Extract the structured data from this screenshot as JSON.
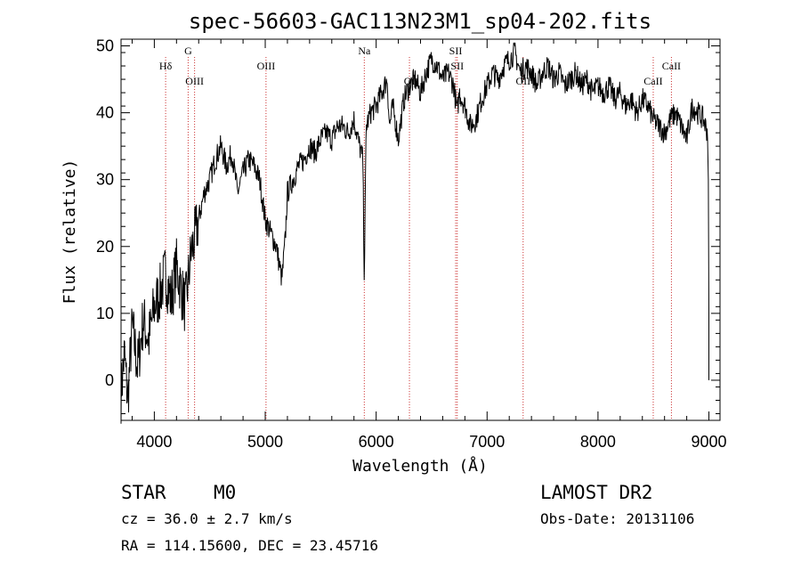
{
  "chart_data": {
    "type": "line",
    "title": "spec-56603-GAC113N23M1_sp04-202.fits",
    "xlabel": "Wavelength (Å)",
    "ylabel": "Flux (relative)",
    "xlim": [
      3700,
      9100
    ],
    "ylim": [
      -6,
      51
    ],
    "xticks": [
      4000,
      5000,
      6000,
      7000,
      8000,
      9000
    ],
    "yticks": [
      0,
      10,
      20,
      30,
      40,
      50
    ],
    "x": [
      3700,
      3730,
      3760,
      3800,
      3850,
      3900,
      3950,
      4000,
      4050,
      4100,
      4150,
      4200,
      4250,
      4280,
      4300,
      4330,
      4360,
      4400,
      4450,
      4500,
      4550,
      4600,
      4650,
      4700,
      4750,
      4800,
      4850,
      4900,
      4950,
      5000,
      5050,
      5100,
      5150,
      5180,
      5200,
      5250,
      5300,
      5350,
      5400,
      5450,
      5500,
      5550,
      5600,
      5650,
      5700,
      5750,
      5800,
      5850,
      5880,
      5893,
      5910,
      5950,
      6000,
      6050,
      6100,
      6120,
      6150,
      6200,
      6250,
      6300,
      6350,
      6400,
      6450,
      6500,
      6550,
      6600,
      6650,
      6700,
      6730,
      6750,
      6800,
      6850,
      6900,
      6950,
      7000,
      7050,
      7100,
      7150,
      7200,
      7250,
      7300,
      7350,
      7400,
      7450,
      7500,
      7550,
      7600,
      7650,
      7700,
      7750,
      7800,
      7850,
      7900,
      7950,
      8000,
      8050,
      8100,
      8150,
      8200,
      8250,
      8300,
      8350,
      8400,
      8450,
      8500,
      8550,
      8600,
      8650,
      8700,
      8750,
      8800,
      8850,
      8900,
      8950,
      8990,
      9000
    ],
    "y": [
      -2,
      4,
      -3,
      8,
      2,
      9,
      6,
      11,
      13,
      16,
      12,
      17,
      13,
      11,
      14,
      19,
      21,
      24,
      28,
      30,
      33,
      35,
      32,
      34,
      28,
      31,
      33,
      32,
      30,
      24,
      22,
      20,
      15,
      21,
      28,
      30,
      32,
      33,
      35,
      34,
      36,
      37,
      36,
      38,
      38,
      37,
      39,
      35,
      33,
      15,
      38,
      40,
      41,
      43,
      45,
      38,
      41,
      36,
      42,
      44,
      45,
      43,
      46,
      48,
      47,
      45,
      46,
      44,
      40,
      43,
      41,
      38,
      39,
      42,
      44,
      46,
      45,
      47,
      48,
      49,
      46,
      47,
      46,
      44,
      46,
      47,
      45,
      46,
      44,
      45,
      46,
      44,
      45,
      43,
      44,
      43,
      44,
      42,
      43,
      41,
      42,
      40,
      42,
      41,
      39,
      38,
      37,
      39,
      40,
      38,
      36,
      41,
      40,
      39,
      37,
      0
    ],
    "lines": [
      {
        "name": "Hδ",
        "x": 4102,
        "row": "upper"
      },
      {
        "name": "G",
        "x": 4305,
        "row": "top"
      },
      {
        "name": "OIII",
        "x": 4363,
        "row": "lower"
      },
      {
        "name": "OIII",
        "x": 5007,
        "row": "upper"
      },
      {
        "name": "Na",
        "x": 5893,
        "row": "top"
      },
      {
        "name": "OI",
        "x": 6300,
        "row": "lower"
      },
      {
        "name": "SII",
        "x": 6717,
        "row": "top"
      },
      {
        "name": "SII",
        "x": 6731,
        "row": "upper"
      },
      {
        "name": "OII",
        "x": 7325,
        "row": "lower"
      },
      {
        "name": "CaII",
        "x": 8498,
        "row": "lower"
      },
      {
        "name": "CaII",
        "x": 8662,
        "row": "upper"
      }
    ]
  },
  "info": {
    "object_class": "STAR",
    "subclass": "M0",
    "survey": "LAMOST DR2",
    "cz": "cz = 36.0 ± 2.7 km/s",
    "obs_date": "Obs-Date: 20131106",
    "coords": "RA = 114.15600, DEC =  23.45716"
  }
}
